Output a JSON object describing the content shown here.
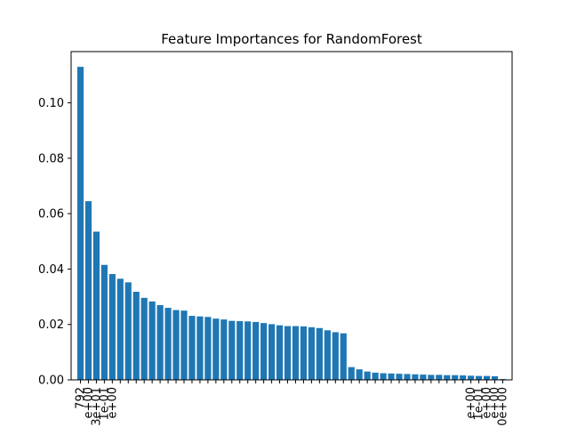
{
  "chart_data": {
    "type": "bar",
    "title": "Feature Importances for RandomForest",
    "xlabel": "",
    "ylabel": "",
    "ylim": [
      0,
      0.1185
    ],
    "ytick_values": [
      0.0,
      0.02,
      0.04,
      0.06,
      0.08,
      0.1
    ],
    "ytick_labels": [
      "0.00",
      "0.02",
      "0.04",
      "0.06",
      "0.08",
      "0.10"
    ],
    "bar_color": "#1f77b4",
    "visible_xtick_labels": [
      "792",
      "e+00",
      "3e+01",
      "1e-01",
      "e+00",
      "e+00",
      "1e-01",
      "e+00",
      "e+00",
      "0e+00"
    ],
    "values": [
      0.113,
      0.0645,
      0.0535,
      0.0415,
      0.0382,
      0.0365,
      0.0352,
      0.0318,
      0.0296,
      0.0283,
      0.027,
      0.026,
      0.0252,
      0.025,
      0.0231,
      0.0229,
      0.0227,
      0.0221,
      0.0218,
      0.0213,
      0.0212,
      0.0211,
      0.0209,
      0.0205,
      0.0201,
      0.0197,
      0.0194,
      0.0194,
      0.0193,
      0.019,
      0.0187,
      0.0179,
      0.0172,
      0.0168,
      0.0046,
      0.0038,
      0.003,
      0.0026,
      0.0024,
      0.0023,
      0.0022,
      0.0021,
      0.002,
      0.0019,
      0.0018,
      0.0018,
      0.0017,
      0.0017,
      0.0016,
      0.0015,
      0.0014,
      0.0014,
      0.0013,
      0.0003
    ]
  }
}
